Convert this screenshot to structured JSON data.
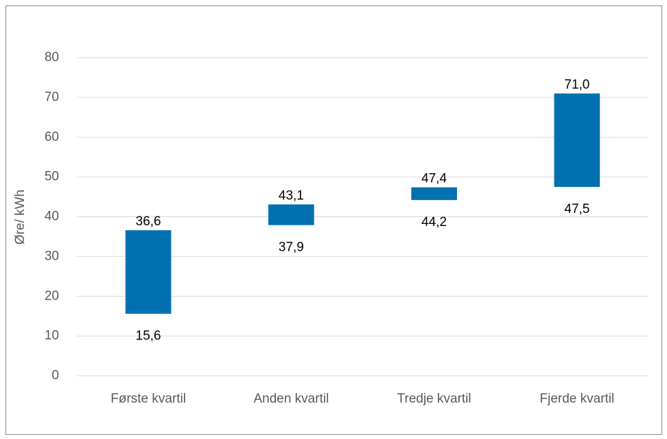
{
  "chart_data": {
    "type": "floating_bar",
    "categories": [
      "Første kvartil",
      "Anden kvartil",
      "Tredje kvartil",
      "Fjerde kvartil"
    ],
    "low": [
      15.6,
      37.9,
      44.2,
      47.5
    ],
    "high": [
      36.6,
      43.1,
      47.4,
      71.0
    ],
    "low_labels": [
      "15,6",
      "37,9",
      "44,2",
      "47,5"
    ],
    "high_labels": [
      "36,6",
      "43,1",
      "47,4",
      "71,0"
    ],
    "color": "#0070b0",
    "ylabel": "Øre/ kWh",
    "ylim": [
      0,
      80
    ],
    "yticks": [
      0,
      10,
      20,
      30,
      40,
      50,
      60,
      70,
      80
    ],
    "grid": true
  }
}
